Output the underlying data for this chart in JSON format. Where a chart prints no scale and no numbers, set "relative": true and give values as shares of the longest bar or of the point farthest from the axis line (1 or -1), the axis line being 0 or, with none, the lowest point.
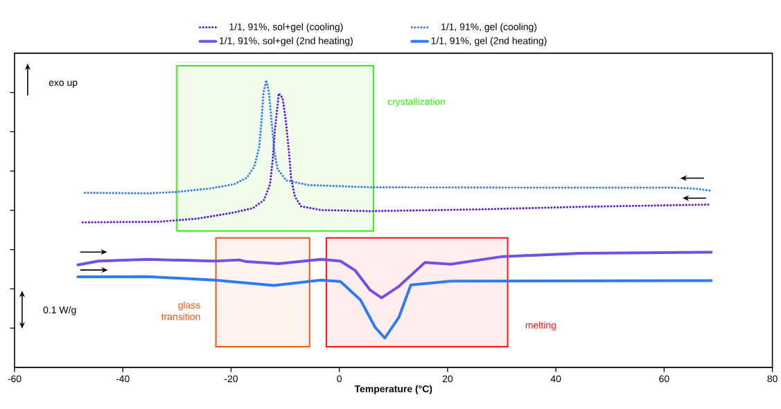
{
  "chart_data": {
    "type": "line",
    "relative": true,
    "xlabel": "Temperature (°C)",
    "xlim": [
      -60,
      80
    ],
    "xticks": [
      -60,
      -40,
      -20,
      0,
      20,
      40,
      60,
      80
    ],
    "legend": "top",
    "marker": "none",
    "series": [
      {
        "name": "1/1, 91%, sol+gel (cooling)",
        "color": "#5a19e6",
        "line_style": "dotted",
        "x": [
          -47.4,
          -33.5,
          -26.2,
          -20.1,
          -16.0,
          -13.9,
          -12.8,
          -12.3,
          -11.9,
          -11.4,
          -11.2,
          -10.5,
          -9.9,
          -9.3,
          -8.9,
          -8.2,
          -7.1,
          -3.4,
          5.7,
          25.4,
          44.5,
          68.7
        ],
        "values": [
          0.505,
          0.507,
          0.518,
          0.537,
          0.554,
          0.583,
          0.638,
          0.724,
          0.827,
          0.913,
          0.954,
          0.939,
          0.862,
          0.75,
          0.656,
          0.595,
          0.561,
          0.548,
          0.544,
          0.55,
          0.559,
          0.567
        ]
      },
      {
        "name": "1/1, 91%, gel (cooling)",
        "color": "#2f7ef5",
        "line_style": "dotted",
        "x": [
          -47.0,
          -35.4,
          -29.9,
          -23.9,
          -19.4,
          -17.1,
          -15.7,
          -14.8,
          -14.4,
          -14.0,
          -13.5,
          -13.0,
          -12.5,
          -12.0,
          -11.4,
          -9.8,
          -5.7,
          5.7,
          35.0,
          61.3,
          66.0,
          68.7
        ],
        "values": [
          0.608,
          0.606,
          0.611,
          0.623,
          0.638,
          0.66,
          0.7,
          0.767,
          0.853,
          0.957,
          1.0,
          0.957,
          0.853,
          0.75,
          0.69,
          0.651,
          0.635,
          0.627,
          0.626,
          0.626,
          0.622,
          0.615
        ]
      },
      {
        "name": "1/1, 91%, sol+gel (2nd heating)",
        "color": "#7150e8",
        "line_style": "solid",
        "x": [
          -48.3,
          -44.5,
          -35.4,
          -23.0,
          -18.5,
          -17.1,
          -11.2,
          -3.4,
          0.2,
          2.9,
          5.7,
          7.8,
          11.0,
          15.8,
          20.6,
          30.2,
          44.5,
          68.7
        ],
        "values": [
          0.357,
          0.37,
          0.376,
          0.37,
          0.374,
          0.368,
          0.361,
          0.376,
          0.37,
          0.338,
          0.269,
          0.242,
          0.282,
          0.365,
          0.359,
          0.386,
          0.397,
          0.401
        ]
      },
      {
        "name": "1/1, 91%, gel (2nd heating)",
        "color": "#2d7bf7",
        "line_style": "solid",
        "x": [
          -48.3,
          -35.4,
          -23.0,
          -12.1,
          -3.4,
          0.2,
          3.9,
          6.6,
          8.4,
          11.0,
          13.2,
          20.6,
          68.7
        ],
        "values": [
          0.315,
          0.316,
          0.304,
          0.285,
          0.304,
          0.299,
          0.235,
          0.14,
          0.102,
          0.174,
          0.287,
          0.3,
          0.302
        ]
      }
    ],
    "bands": [
      {
        "axis": "x",
        "from": -30.0,
        "to": 6.3,
        "label": "crystallization",
        "color": "#33ee11"
      },
      {
        "axis": "x",
        "from": -22.8,
        "to": -5.5,
        "label": "glass transition",
        "color": "#ee5511"
      },
      {
        "axis": "x",
        "from": -2.4,
        "to": 31.1,
        "label": "melting",
        "color": "#ff1111"
      }
    ],
    "annotations": [
      "exo up",
      "0.1 W/g"
    ]
  }
}
